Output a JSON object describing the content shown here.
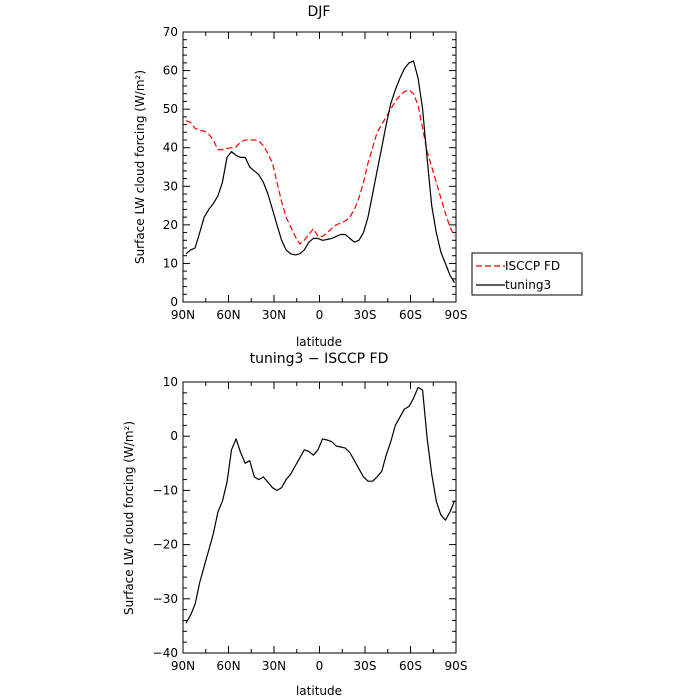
{
  "chart_data": [
    {
      "type": "line",
      "title": "DJF",
      "xlabel": "latitude",
      "ylabel": "Surface LW cloud forcing (W/m²)",
      "xlim": [
        -90,
        90
      ],
      "ylim": [
        0,
        70
      ],
      "xticks": [
        -90,
        -60,
        -30,
        0,
        30,
        60,
        90
      ],
      "xtick_labels": [
        "90N",
        "60N",
        "30N",
        "0",
        "30S",
        "60S",
        "90S"
      ],
      "yticks": [
        0,
        10,
        20,
        30,
        40,
        50,
        60,
        70
      ],
      "grid": false,
      "legend": "right",
      "series": [
        {
          "name": "ISCCP FD",
          "color": "#ff0000",
          "dash": "dashed",
          "x": [
            -88,
            -85,
            -82,
            -79,
            -76,
            -73,
            -70,
            -67,
            -64,
            -61,
            -58,
            -55,
            -52,
            -49,
            -46,
            -43,
            -40,
            -37,
            -34,
            -31,
            -28,
            -25,
            -22,
            -19,
            -16,
            -13,
            -10,
            -7,
            -4,
            -1,
            2,
            5,
            8,
            11,
            14,
            17,
            20,
            23,
            26,
            29,
            32,
            35,
            38,
            41,
            44,
            47,
            50,
            53,
            56,
            59,
            62,
            65,
            68,
            71,
            74,
            77,
            80,
            83,
            86,
            89
          ],
          "y": [
            47,
            46.5,
            45,
            44.5,
            44.3,
            43.5,
            42,
            39.5,
            39.5,
            39.8,
            40,
            40.2,
            41.5,
            42,
            42,
            42,
            41.8,
            40.5,
            38.5,
            36,
            31,
            26,
            22,
            19.5,
            17,
            15,
            16,
            17.5,
            19,
            17,
            17,
            18,
            19,
            20,
            20.5,
            21,
            22,
            24,
            27,
            31,
            36,
            40,
            44,
            46,
            48,
            50,
            52,
            53.5,
            54.5,
            55,
            54,
            51,
            45,
            39,
            35,
            31,
            27,
            23,
            19.5,
            17
          ]
        },
        {
          "name": "tuning3",
          "color": "#000000",
          "dash": "solid",
          "x": [
            -88,
            -85,
            -82,
            -79,
            -76,
            -73,
            -70,
            -67,
            -64,
            -61,
            -58,
            -55,
            -52,
            -49,
            -46,
            -43,
            -40,
            -37,
            -34,
            -31,
            -28,
            -25,
            -22,
            -19,
            -16,
            -13,
            -10,
            -7,
            -4,
            -1,
            2,
            5,
            8,
            11,
            14,
            17,
            20,
            23,
            26,
            29,
            32,
            35,
            38,
            41,
            44,
            47,
            50,
            53,
            56,
            59,
            62,
            65,
            68,
            71,
            74,
            77,
            80,
            83,
            86,
            89
          ],
          "y": [
            12.5,
            13.5,
            14,
            18,
            22,
            24,
            25.5,
            27.5,
            31,
            37.5,
            39,
            38,
            37.5,
            37.5,
            35,
            34,
            33,
            31,
            28,
            24,
            20,
            16,
            13.5,
            12.5,
            12.2,
            12.5,
            13.5,
            15.5,
            16.5,
            16.5,
            16,
            16.2,
            16.5,
            17,
            17.5,
            17.5,
            16.5,
            15.5,
            16,
            18,
            22,
            28,
            34,
            40,
            46,
            51.5,
            55,
            58,
            60.5,
            62,
            62.5,
            58,
            50,
            37,
            25,
            18,
            13,
            10,
            7,
            5
          ]
        }
      ]
    },
    {
      "type": "line",
      "title": "tuning3 − ISCCP FD",
      "xlabel": "latitude",
      "ylabel": "Surface LW cloud forcing (W/m²)",
      "xlim": [
        -90,
        90
      ],
      "ylim": [
        -40,
        10
      ],
      "xticks": [
        -90,
        -60,
        -30,
        0,
        30,
        60,
        90
      ],
      "xtick_labels": [
        "90N",
        "60N",
        "30N",
        "0",
        "30S",
        "60S",
        "90S"
      ],
      "yticks": [
        -40,
        -30,
        -20,
        -10,
        0,
        10
      ],
      "grid": false,
      "series": [
        {
          "color": "#000000",
          "dash": "solid",
          "x": [
            -88,
            -85,
            -82,
            -79,
            -76,
            -73,
            -70,
            -67,
            -64,
            -61,
            -58,
            -55,
            -52,
            -49,
            -46,
            -43,
            -40,
            -37,
            -34,
            -31,
            -28,
            -25,
            -22,
            -19,
            -16,
            -13,
            -10,
            -7,
            -4,
            -1,
            2,
            5,
            8,
            11,
            14,
            17,
            20,
            23,
            26,
            29,
            32,
            35,
            38,
            41,
            44,
            47,
            50,
            53,
            56,
            59,
            62,
            65,
            68,
            71,
            74,
            77,
            80,
            83,
            86,
            89
          ],
          "y": [
            -34.5,
            -33,
            -31,
            -27,
            -24,
            -21,
            -18,
            -14,
            -12,
            -8.5,
            -2.5,
            -0.5,
            -3,
            -5,
            -4.5,
            -7.5,
            -8,
            -7.5,
            -8.5,
            -9.5,
            -10,
            -9.5,
            -8,
            -7,
            -5.5,
            -4,
            -2.5,
            -2.8,
            -3.5,
            -2.5,
            -0.5,
            -0.7,
            -1,
            -1.8,
            -2,
            -2.2,
            -3,
            -4.5,
            -6,
            -7.5,
            -8.3,
            -8.3,
            -7.5,
            -6.5,
            -3.5,
            -1,
            2,
            3.5,
            5,
            5.5,
            7,
            9,
            8.5,
            -0.5,
            -7,
            -12,
            -14.5,
            -15.5,
            -14,
            -12
          ]
        }
      ]
    }
  ]
}
